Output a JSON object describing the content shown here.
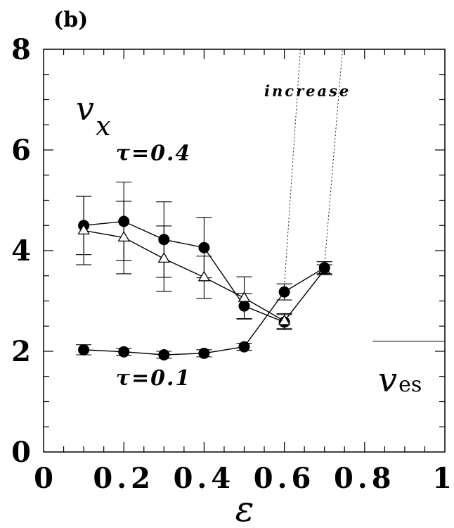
{
  "chart_data": {
    "type": "line",
    "panel_label": "(b)",
    "xlabel": "ε",
    "ylabel": {
      "main": "v",
      "sub": "x"
    },
    "xlim": [
      0,
      1
    ],
    "ylim": [
      0,
      8
    ],
    "xticks": [
      0,
      0.2,
      0.4,
      0.6,
      0.8,
      1
    ],
    "xtick_labels": [
      "0",
      "0.2",
      "0.4",
      "0.6",
      "0.8",
      "1"
    ],
    "yticks": [
      0,
      2,
      4,
      6,
      8
    ],
    "ytick_labels": [
      "0",
      "2",
      "4",
      "6",
      "8"
    ],
    "grid": false,
    "series": [
      {
        "name": "τ=0.4",
        "marker": "filled-circle",
        "x": [
          0.1,
          0.2,
          0.3,
          0.4,
          0.5,
          0.6
        ],
        "y": [
          4.5,
          4.58,
          4.22,
          4.06,
          2.9,
          2.58
        ],
        "err": [
          0.58,
          0.78,
          0.75,
          0.6,
          0.25,
          0.15
        ]
      },
      {
        "name": "",
        "marker": "open-triangle",
        "x": [
          0.1,
          0.2,
          0.3,
          0.4,
          0.5,
          0.6,
          0.7
        ],
        "y": [
          4.4,
          4.26,
          3.84,
          3.47,
          3.06,
          2.6,
          3.62
        ],
        "err": [
          0.68,
          0.72,
          0.65,
          0.42,
          0.42,
          0.15,
          0.1
        ]
      },
      {
        "name": "τ=0.1",
        "marker": "filled-circle",
        "x": [
          0.1,
          0.2,
          0.3,
          0.4,
          0.5,
          0.6,
          0.7
        ],
        "y": [
          2.03,
          1.99,
          1.93,
          1.96,
          2.09,
          3.18,
          3.66
        ],
        "err": [
          0.1,
          0.07,
          0.07,
          0.07,
          0.07,
          0.16,
          0.12
        ]
      }
    ],
    "dotted_lines": [
      {
        "x": [
          0.6,
          0.64
        ],
        "y": [
          3.3,
          8.0
        ]
      },
      {
        "x": [
          0.7,
          0.745
        ],
        "y": [
          3.7,
          8.0
        ]
      }
    ],
    "reference_line": {
      "x": [
        0.82,
        1.0
      ],
      "y": 2.2,
      "label_main": "v",
      "label_sub": "es"
    },
    "annotations": [
      {
        "text": "increase",
        "x": 0.55,
        "y": 7.07
      },
      {
        "text": "τ=0.4",
        "x": 0.18,
        "y": 5.8
      },
      {
        "text": "τ=0.1",
        "x": 0.18,
        "y": 1.33
      }
    ]
  }
}
